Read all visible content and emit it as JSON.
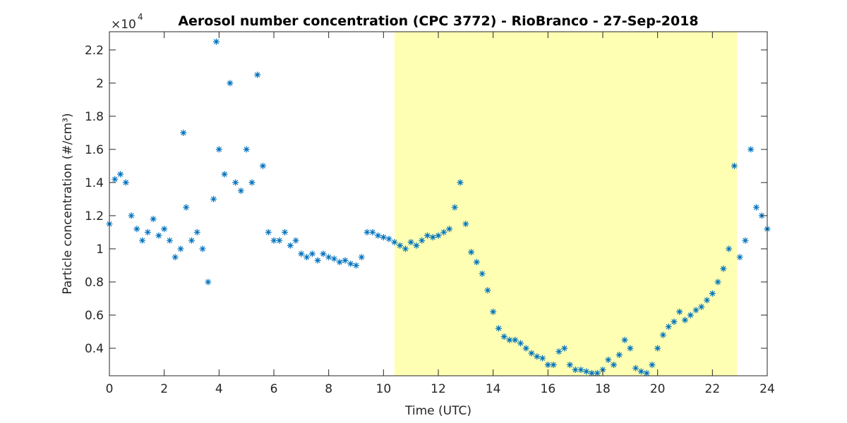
{
  "chart_data": {
    "type": "scatter",
    "title": "Aerosol number concentration (CPC 3772) - RioBranco - 27-Sep-2018",
    "xlabel": "Time (UTC)",
    "ylabel": "Particle concentration (#/cm³)",
    "y_multiplier": "×10",
    "y_multiplier_exponent": "4",
    "marker": "*",
    "highlight": {
      "span": [
        10.4,
        22.9
      ],
      "color": "#ffffb3"
    },
    "xlim": [
      0,
      24
    ],
    "xticks": [
      0,
      2,
      4,
      6,
      8,
      10,
      12,
      14,
      16,
      18,
      20,
      22,
      24
    ],
    "ylim": [
      0.234,
      2.31
    ],
    "yticks": [
      0.4,
      0.6,
      0.8,
      1,
      1.2,
      1.4,
      1.6,
      1.8,
      2,
      2.2
    ],
    "series": [
      {
        "name": "CPC 3772",
        "color": "#0072bd",
        "x": [
          0,
          0.2,
          0.4,
          0.6,
          0.8,
          1.0,
          1.2,
          1.4,
          1.6,
          1.8,
          2.0,
          2.2,
          2.4,
          2.6,
          2.7,
          2.8,
          3.0,
          3.2,
          3.4,
          3.6,
          3.8,
          3.9,
          4.0,
          4.2,
          4.4,
          4.6,
          4.8,
          5.0,
          5.2,
          5.4,
          5.6,
          5.8,
          6.0,
          6.2,
          6.4,
          6.6,
          6.8,
          7.0,
          7.2,
          7.4,
          7.6,
          7.8,
          8.0,
          8.2,
          8.4,
          8.6,
          8.8,
          9.0,
          9.2,
          9.4,
          9.6,
          9.8,
          10.0,
          10.2,
          10.4,
          10.6,
          10.8,
          11.0,
          11.2,
          11.4,
          11.6,
          11.8,
          12.0,
          12.2,
          12.4,
          12.6,
          12.8,
          13.0,
          13.2,
          13.4,
          13.6,
          13.8,
          14.0,
          14.2,
          14.4,
          14.6,
          14.8,
          15.0,
          15.2,
          15.4,
          15.6,
          15.8,
          16.0,
          16.2,
          16.4,
          16.6,
          16.8,
          17.0,
          17.2,
          17.4,
          17.6,
          17.8,
          18.0,
          18.2,
          18.4,
          18.6,
          18.8,
          19.0,
          19.2,
          19.4,
          19.6,
          19.8,
          20.0,
          20.2,
          20.4,
          20.6,
          20.8,
          21.0,
          21.2,
          21.4,
          21.6,
          21.8,
          22.0,
          22.2,
          22.4,
          22.6,
          22.8,
          23.0,
          23.2,
          23.4,
          23.6,
          23.8,
          24.0
        ],
        "values": [
          1.15,
          1.42,
          1.45,
          1.4,
          1.2,
          1.12,
          1.05,
          1.1,
          1.18,
          1.08,
          1.12,
          1.05,
          0.95,
          1.0,
          1.7,
          1.25,
          1.05,
          1.1,
          1.0,
          0.8,
          1.3,
          2.25,
          1.6,
          1.45,
          2.0,
          1.4,
          1.35,
          1.6,
          1.4,
          2.05,
          1.5,
          1.1,
          1.05,
          1.05,
          1.1,
          1.02,
          1.05,
          0.97,
          0.95,
          0.97,
          0.93,
          0.97,
          0.95,
          0.94,
          0.92,
          0.93,
          0.91,
          0.9,
          0.95,
          1.1,
          1.1,
          1.08,
          1.07,
          1.06,
          1.04,
          1.02,
          1.0,
          1.04,
          1.02,
          1.05,
          1.08,
          1.07,
          1.08,
          1.1,
          1.12,
          1.25,
          1.4,
          1.15,
          0.98,
          0.92,
          0.85,
          0.75,
          0.62,
          0.52,
          0.47,
          0.45,
          0.45,
          0.43,
          0.4,
          0.37,
          0.35,
          0.34,
          0.3,
          0.3,
          0.38,
          0.4,
          0.3,
          0.27,
          0.27,
          0.26,
          0.25,
          0.25,
          0.27,
          0.33,
          0.3,
          0.36,
          0.45,
          0.4,
          0.28,
          0.26,
          0.25,
          0.3,
          0.4,
          0.48,
          0.53,
          0.56,
          0.62,
          0.57,
          0.6,
          0.63,
          0.65,
          0.69,
          0.73,
          0.8,
          0.88,
          1.0,
          1.5,
          0.95,
          1.05,
          1.6,
          1.25,
          1.2,
          1.12
        ]
      }
    ]
  }
}
